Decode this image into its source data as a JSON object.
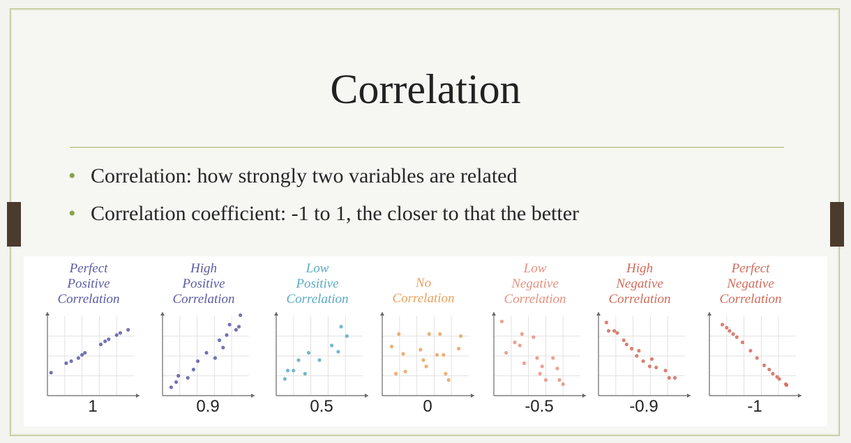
{
  "slide": {
    "title": "Correlation",
    "bullets": [
      "Correlation: how strongly two variables are related",
      "Correlation coefficient: -1 to 1, the closer to that the better"
    ]
  },
  "chart_data": [
    {
      "type": "scatter",
      "label": [
        "Perfect",
        "Positive",
        "Correlation"
      ],
      "coefficient": "1",
      "color": "#5b5ba6",
      "x": [
        0.5,
        2.6,
        3.3,
        4.3,
        4.8,
        5.2,
        7.4,
        8.0,
        8.5,
        9.6,
        10.1,
        11.2
      ],
      "y": [
        2.2,
        3.1,
        3.3,
        3.6,
        3.9,
        4.1,
        4.9,
        5.2,
        5.4,
        5.8,
        6.0,
        6.3
      ]
    },
    {
      "type": "scatter",
      "label": [
        "High",
        "Positive",
        "Correlation"
      ],
      "coefficient": "0.9",
      "color": "#5b5ba6",
      "x": [
        1.2,
        1.9,
        2.2,
        3.5,
        4.3,
        4.9,
        6.1,
        7.3,
        7.9,
        8.4,
        8.9,
        9.3,
        10.2,
        10.6,
        10.8
      ],
      "y": [
        0.8,
        1.3,
        1.9,
        1.7,
        2.5,
        3.3,
        4.1,
        3.6,
        5.3,
        4.6,
        5.8,
        6.8,
        6.3,
        6.6,
        7.7
      ]
    },
    {
      "type": "scatter",
      "label": [
        "Low",
        "Positive",
        "Correlation"
      ],
      "coefficient": "0.5",
      "color": "#5aabc4",
      "x": [
        1.2,
        1.6,
        2.4,
        3.1,
        4.0,
        4.5,
        6.0,
        7.7,
        8.6,
        9.0,
        9.8
      ],
      "y": [
        1.6,
        2.4,
        2.4,
        3.4,
        2.1,
        4.1,
        3.4,
        4.8,
        4.2,
        6.6,
        5.7
      ]
    },
    {
      "type": "scatter",
      "label": [
        "No",
        "Correlation"
      ],
      "coefficient": "0",
      "color": "#e8a25e",
      "x": [
        1.3,
        1.9,
        2.3,
        2.9,
        3.2,
        5.3,
        5.7,
        6.1,
        6.5,
        7.6,
        8.0,
        8.5,
        8.8,
        9.2,
        10.6,
        10.9
      ],
      "y": [
        4.7,
        2.1,
        5.9,
        4.0,
        2.3,
        4.4,
        3.4,
        2.8,
        5.9,
        3.9,
        5.9,
        3.9,
        2.1,
        1.5,
        4.5,
        5.7
      ]
    },
    {
      "type": "scatter",
      "label": [
        "Low",
        "Negative",
        "Correlation"
      ],
      "coefficient": "-0.5",
      "color": "#e8907f",
      "x": [
        1.1,
        1.7,
        2.9,
        3.6,
        3.9,
        4.2,
        5.5,
        6.0,
        6.4,
        6.7,
        7.2,
        8.2,
        8.8,
        9.1,
        9.6
      ],
      "y": [
        7.1,
        4.1,
        5.1,
        4.8,
        5.9,
        3.1,
        5.6,
        3.6,
        2.1,
        2.8,
        1.5,
        3.6,
        2.6,
        1.5,
        1.1
      ]
    },
    {
      "type": "scatter",
      "label": [
        "High",
        "Negative",
        "Correlation"
      ],
      "coefficient": "-0.9",
      "color": "#d26b5a",
      "x": [
        1.1,
        1.4,
        2.2,
        2.6,
        3.5,
        3.9,
        4.6,
        5.3,
        5.6,
        6.2,
        7.1,
        7.4,
        8.0,
        9.3,
        9.8,
        10.6
      ],
      "y": [
        7.0,
        6.2,
        6.2,
        6.0,
        5.3,
        4.9,
        4.5,
        3.8,
        4.3,
        3.3,
        2.8,
        3.5,
        2.7,
        2.4,
        1.7,
        1.7
      ]
    },
    {
      "type": "scatter",
      "label": [
        "Perfect",
        "Negative",
        "Correlation"
      ],
      "coefficient": "-1",
      "color": "#d26b5a",
      "x": [
        1.8,
        2.4,
        2.8,
        3.3,
        3.8,
        4.6,
        5.7,
        6.6,
        7.6,
        8.3,
        8.8,
        9.4,
        9.7,
        10.6,
        10.7
      ],
      "y": [
        6.8,
        6.5,
        6.2,
        5.9,
        5.6,
        5.1,
        4.3,
        3.6,
        2.9,
        2.5,
        2.1,
        1.8,
        1.6,
        1.1,
        1.0
      ]
    }
  ]
}
